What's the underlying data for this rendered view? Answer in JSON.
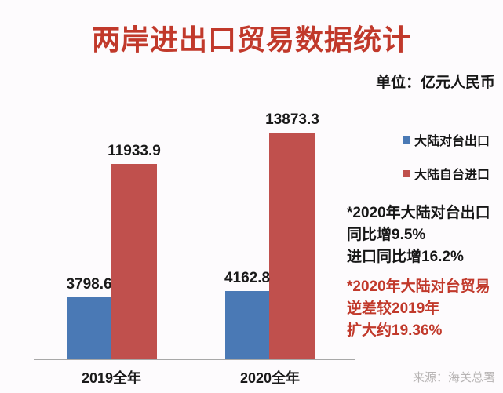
{
  "title": "两岸进出口贸易数据统计",
  "unit_label": "单位：亿元人民币",
  "legend": [
    {
      "label": "大陆对台出口",
      "color": "#4a79b5"
    },
    {
      "label": "大陆自台进口",
      "color": "#c0504d"
    }
  ],
  "chart_data": {
    "type": "bar",
    "title": "两岸进出口贸易数据统计",
    "unit": "亿元人民币",
    "categories": [
      "2019全年",
      "2020全年"
    ],
    "series": [
      {
        "name": "大陆对台出口",
        "color": "#4a79b5",
        "values": [
          3798.6,
          4162.8
        ]
      },
      {
        "name": "大陆自台进口",
        "color": "#c0504d",
        "values": [
          11933.9,
          13873.3
        ]
      }
    ],
    "ylim": [
      0,
      14400
    ],
    "grid": false,
    "y_axis_visible": false,
    "legend_position": "right",
    "data_labels": true
  },
  "annotations": {
    "black_note_lines": [
      "*2020年大陆对台出口",
      "同比增9.5%",
      "进口同比增16.2%"
    ],
    "red_note_lines": [
      "*2020年大陆对台贸易",
      "逆差较2019年",
      "扩大约19.36%"
    ],
    "red_note_color": "#c1392b"
  },
  "source": "来源：海关总署",
  "colors": {
    "background": "#fdfbfd",
    "title_red": "#c1392b",
    "bar_blue": "#4a79b5",
    "bar_red": "#c0504d",
    "axis_gray": "#a8a8a8",
    "source_gray": "#b7b4b4"
  }
}
